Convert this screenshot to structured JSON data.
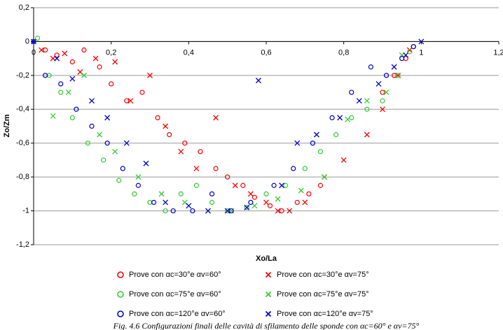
{
  "chart_data": {
    "type": "scatter",
    "xlabel": "Xo/La",
    "ylabel": "Zo/Zm",
    "caption": "Fig. 4.6 Configurazioni finali delle cavità di sfilamento delle sponde con αc=60° e αv=75°",
    "xlim": [
      0,
      1.2
    ],
    "ylim": [
      -1.2,
      0.2
    ],
    "xticks": [
      0,
      {
        "value": 0.2,
        "label": "0,2"
      },
      {
        "value": 0.4,
        "label": "0,4"
      },
      {
        "value": 0.6,
        "label": "0,6"
      },
      {
        "value": 0.8,
        "label": "0,8"
      },
      1,
      {
        "value": 1.2,
        "label": "1,2"
      }
    ],
    "yticks": [
      {
        "value": 0.2,
        "label": "0,2"
      },
      0,
      {
        "value": -0.2,
        "label": "-0,2"
      },
      {
        "value": -0.4,
        "label": "-0,4"
      },
      {
        "value": -0.6,
        "label": "-0,6"
      },
      {
        "value": -0.8,
        "label": "-0,8"
      },
      -1,
      {
        "value": -1.2,
        "label": "-1,2"
      }
    ],
    "grid": true,
    "series": [
      {
        "name": "Prove con αc=30°e  αv=60°",
        "color": "#ff0000",
        "marker": "o",
        "x": [
          0.03,
          0.06,
          0.1,
          0.13,
          0.17,
          0.2,
          0.24,
          0.28,
          0.32,
          0.35,
          0.39,
          0.43,
          0.47,
          0.5,
          0.54,
          0.57,
          0.61,
          0.64,
          0.68,
          0.71,
          0.74,
          0.9,
          0.93,
          0.96,
          0.98
        ],
        "values": [
          -0.05,
          -0.08,
          -0.12,
          -0.05,
          -0.15,
          -0.25,
          -0.35,
          -0.3,
          -0.45,
          -0.55,
          -0.6,
          -0.65,
          -0.75,
          -0.8,
          -0.85,
          -0.92,
          -0.97,
          -1,
          -0.95,
          -0.9,
          -0.85,
          -0.3,
          -0.2,
          -0.1,
          -0.03
        ]
      },
      {
        "name": "Prove con αc=30°e  αv=75°",
        "color": "#ff0000",
        "marker": "x",
        "x": [
          0.02,
          0.05,
          0.08,
          0.12,
          0.16,
          0.21,
          0.25,
          0.3,
          0.34,
          0.38,
          0.42,
          0.47,
          0.52,
          0.56,
          0.6,
          0.63,
          0.66,
          0.7,
          0.75,
          0.8,
          0.86,
          0.9,
          0.94,
          0.97
        ],
        "values": [
          -0.05,
          -0.1,
          -0.07,
          -0.18,
          -0.1,
          -0.12,
          -0.35,
          -0.2,
          -0.5,
          -0.65,
          -0.75,
          -0.45,
          -0.85,
          -0.9,
          -0.95,
          -1,
          -1,
          -0.95,
          -0.8,
          -0.7,
          -0.55,
          -0.4,
          -0.2,
          -0.05
        ]
      },
      {
        "name": "Prove con αc=75°e  αv=60°",
        "color": "#33cc33",
        "marker": "o",
        "x": [
          0.01,
          0.04,
          0.07,
          0.1,
          0.14,
          0.18,
          0.22,
          0.26,
          0.3,
          0.34,
          0.38,
          0.42,
          0.46,
          0.5,
          0.55,
          0.6,
          0.65,
          0.7,
          0.74,
          0.78,
          0.82,
          0.86,
          0.9,
          0.94,
          0.97
        ],
        "values": [
          0.02,
          -0.2,
          -0.3,
          -0.45,
          -0.6,
          -0.7,
          -0.82,
          -0.9,
          -0.95,
          -1,
          -0.9,
          -0.85,
          -0.95,
          -1,
          -0.98,
          -0.9,
          -0.85,
          -0.75,
          -0.65,
          -0.55,
          -0.45,
          -0.4,
          -0.35,
          -0.2,
          -0.06
        ]
      },
      {
        "name": "Prove con αc=75°e  αv=75°",
        "color": "#33cc33",
        "marker": "x",
        "x": [
          0.05,
          0.09,
          0.13,
          0.17,
          0.21,
          0.27,
          0.33,
          0.39,
          0.45,
          0.51,
          0.57,
          0.63,
          0.69,
          0.75,
          0.81,
          0.86,
          0.91,
          0.95
        ],
        "values": [
          -0.44,
          -0.3,
          -0.2,
          -0.55,
          -0.65,
          -0.8,
          -0.9,
          -0.95,
          -1,
          -1,
          -0.97,
          -0.93,
          -0.88,
          -0.8,
          -0.46,
          -0.35,
          -0.3,
          -0.08
        ]
      },
      {
        "name": "Prove con αc=120°e  αv=60°",
        "color": "#0000cc",
        "marker": "o",
        "x": [
          0,
          0.03,
          0.07,
          0.11,
          0.15,
          0.19,
          0.23,
          0.27,
          0.31,
          0.36,
          0.41,
          0.46,
          0.51,
          0.56,
          0.62,
          0.67,
          0.72,
          0.77,
          0.82,
          0.87,
          0.91,
          0.95,
          0.98
        ],
        "values": [
          0,
          -0.2,
          -0.25,
          -0.4,
          -0.5,
          -0.6,
          -0.75,
          -0.85,
          -0.95,
          -1,
          -1,
          -0.9,
          -1,
          -0.95,
          -0.85,
          -0.75,
          -0.6,
          -0.45,
          -0.3,
          -0.15,
          -0.2,
          -0.1,
          -0.03
        ]
      },
      {
        "name": "Prove con αc=120°e  αv=75°",
        "color": "#0000cc",
        "marker": "x",
        "x": [
          0,
          0.06,
          0.1,
          0.15,
          0.19,
          0.24,
          0.29,
          0.34,
          0.4,
          0.45,
          0.5,
          0.55,
          0.58,
          0.64,
          0.68,
          0.73,
          0.79,
          0.84,
          0.89,
          0.93,
          0.96,
          1
        ],
        "values": [
          0,
          -0.1,
          -0.22,
          -0.35,
          -0.45,
          -0.6,
          -0.72,
          -0.95,
          -0.97,
          -1,
          -1,
          -0.98,
          -0.23,
          -0.85,
          -0.6,
          -0.55,
          -0.45,
          -0.35,
          -0.25,
          -0.15,
          -0.08,
          0
        ]
      }
    ]
  }
}
